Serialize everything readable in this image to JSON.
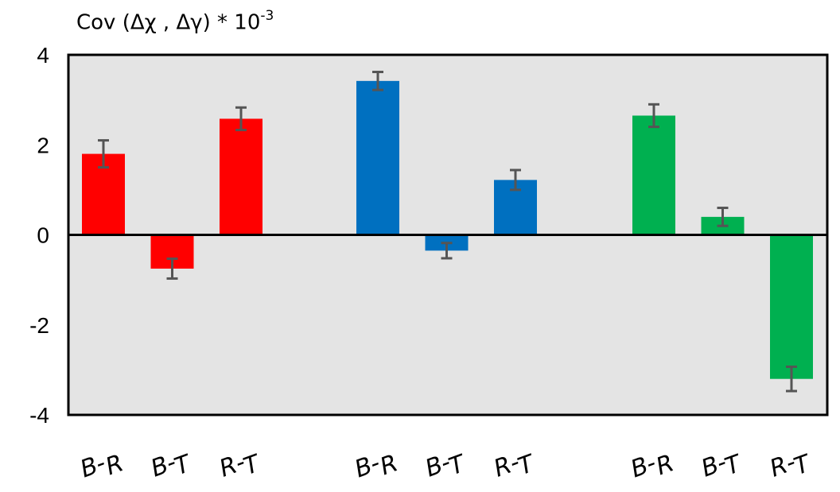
{
  "chart_data": {
    "type": "bar",
    "ylabel": {
      "prefix": "Cov (Δχ , Δγ) * 10",
      "exponent": "-3"
    },
    "ylim": [
      -4,
      4
    ],
    "yticks": [
      4,
      2,
      0,
      -2,
      -4
    ],
    "grid": false,
    "background": "#e4e4e4",
    "groups": [
      {
        "color": "#ff0000",
        "bars": [
          {
            "label": "B-R",
            "value": 1.8,
            "error": 0.3
          },
          {
            "label": "B-T",
            "value": -0.75,
            "error": 0.22
          },
          {
            "label": "R-T",
            "value": 2.58,
            "error": 0.25
          }
        ]
      },
      {
        "color": "#0070c0",
        "bars": [
          {
            "label": "B-R",
            "value": 3.42,
            "error": 0.2
          },
          {
            "label": "B-T",
            "value": -0.35,
            "error": 0.17
          },
          {
            "label": "R-T",
            "value": 1.22,
            "error": 0.22
          }
        ]
      },
      {
        "color": "#00b050",
        "bars": [
          {
            "label": "B-R",
            "value": 2.65,
            "error": 0.25
          },
          {
            "label": "B-T",
            "value": 0.4,
            "error": 0.2
          },
          {
            "label": "R-T",
            "value": -3.2,
            "error": 0.27
          }
        ]
      }
    ]
  }
}
